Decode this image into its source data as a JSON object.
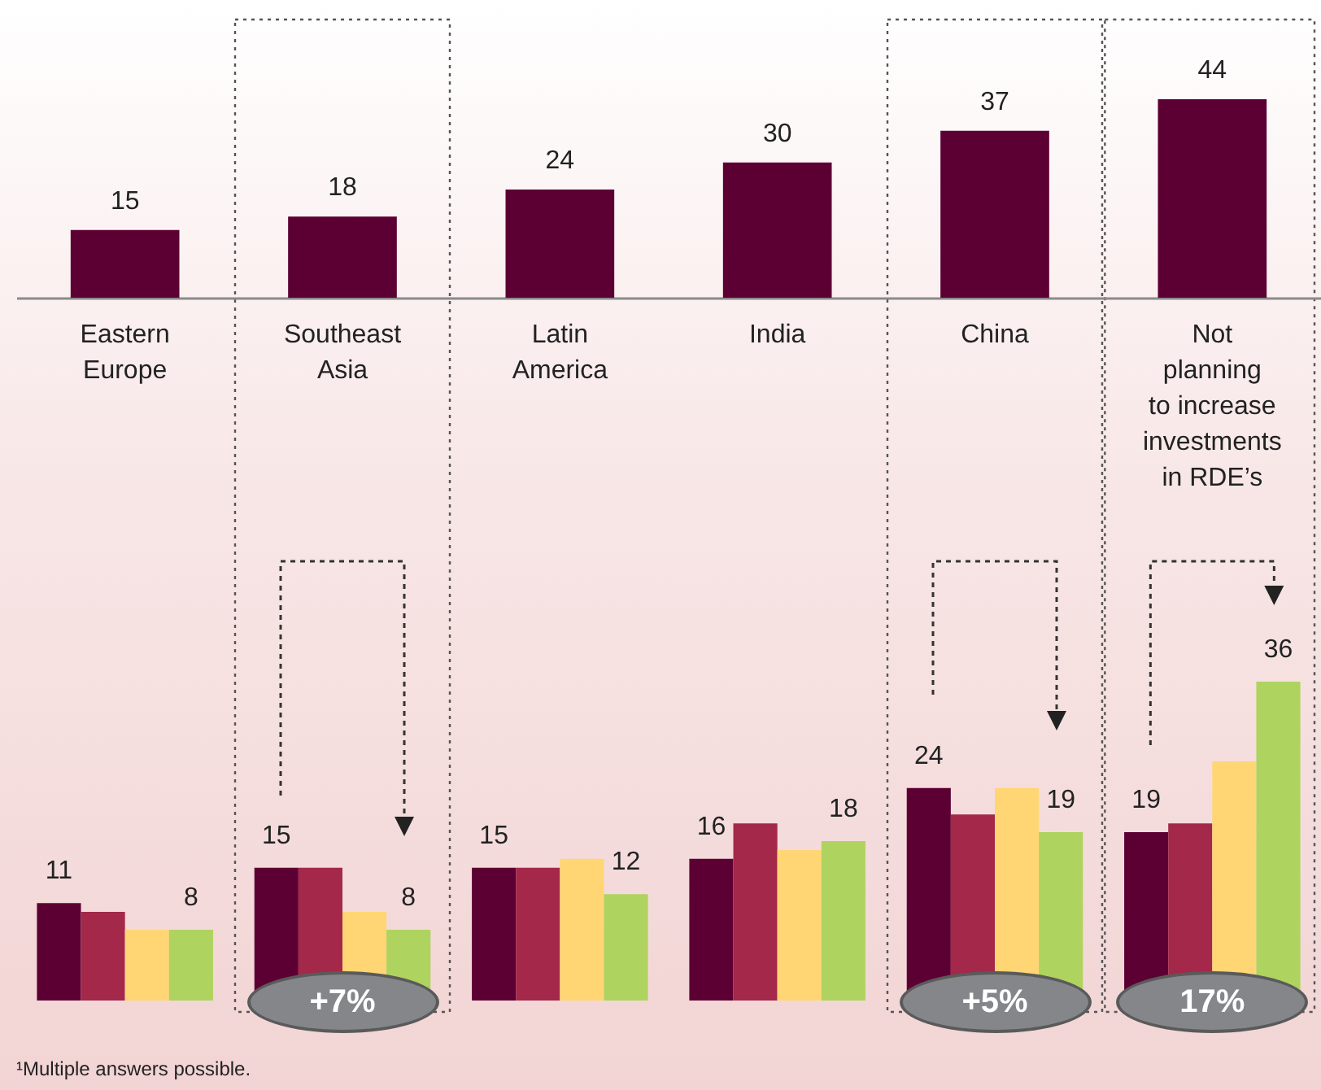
{
  "chart_data": [
    {
      "type": "bar",
      "categories": [
        "Eastern\nEurope",
        "Southeast\nAsia",
        "Latin\nAmerica",
        "India",
        "China",
        "Not\nplanning\nto increase\ninvestments\nin RDE’s"
      ],
      "values": [
        15,
        18,
        24,
        30,
        37,
        44
      ],
      "color": "#5c0033",
      "data_labels": true
    },
    {
      "type": "bar",
      "categories": [
        null,
        null,
        null,
        null,
        null,
        null
      ],
      "series": [
        {
          "color": "#5c0033",
          "values": [
            11,
            15,
            15,
            16,
            24,
            19
          ],
          "value_labels": [
            "11",
            "15",
            "15",
            "16",
            "24",
            "19"
          ]
        },
        {
          "color": "#a3284a",
          "values": [
            10,
            15,
            15,
            20,
            21,
            20
          ]
        },
        {
          "color": "#ffd673",
          "values": [
            8,
            10,
            16,
            17,
            24,
            27
          ]
        },
        {
          "color": "#afd35f",
          "values": [
            8,
            8,
            12,
            18,
            19,
            36
          ],
          "value_labels": [
            "8",
            "8",
            "12",
            "18",
            "19",
            "36"
          ]
        }
      ],
      "annotations": [
        "+7%",
        "+5%",
        "17%",
        "¹Multiple answers possible."
      ]
    }
  ]
}
